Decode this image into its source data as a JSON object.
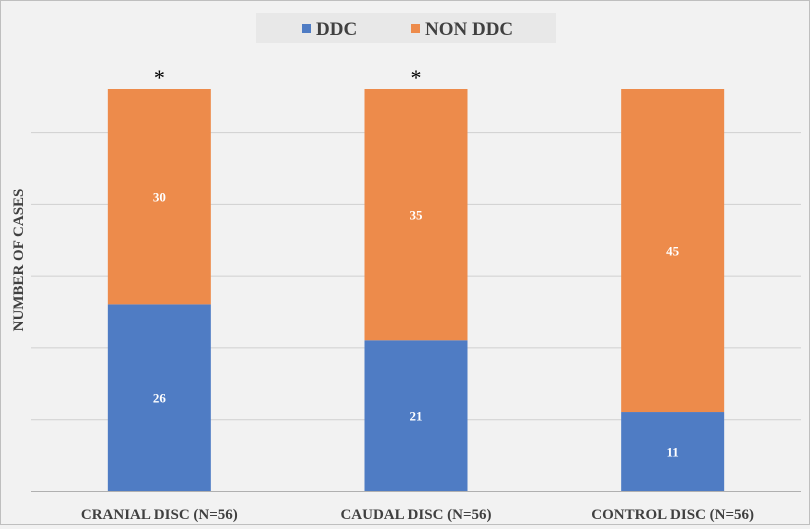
{
  "chart_data": {
    "type": "bar",
    "stacked": true,
    "ylabel": "NUMBER OF CASES",
    "xlabel": "",
    "ylim": [
      0,
      56
    ],
    "grid": true,
    "legend_position": "top-center",
    "categories": [
      "CRANIAL DISC (N=56)",
      "CAUDAL DISC (N=56)",
      "CONTROL DISC (N=56)"
    ],
    "series": [
      {
        "name": "DDC",
        "values": [
          26,
          21,
          11
        ],
        "color": "#4f7cc4"
      },
      {
        "name": "NON DDC",
        "values": [
          30,
          35,
          45
        ],
        "color": "#ed8b4b"
      }
    ],
    "annotations": [
      "*",
      "*",
      ""
    ]
  }
}
